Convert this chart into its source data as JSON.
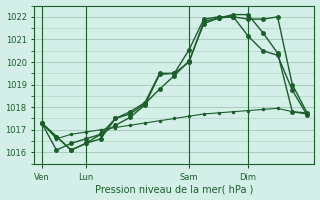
{
  "background_color": "#d4eee8",
  "plot_bg_color": "#d4eee8",
  "grid_color": "#aaccbb",
  "line_color": "#1a5e2a",
  "ylim": [
    1015.5,
    1022.5
  ],
  "yticks": [
    1016,
    1017,
    1018,
    1019,
    1020,
    1021,
    1022
  ],
  "xlabel": "Pression niveau de la mer( hPa )",
  "xtick_labels": [
    "Ven",
    "Lun",
    "Sam",
    "Dim"
  ],
  "xtick_positions": [
    0,
    3,
    10,
    14
  ],
  "series1": [
    1017.3,
    1016.7,
    1016.1,
    1016.4,
    1016.6,
    1017.5,
    1017.8,
    1018.2,
    1019.5,
    1019.5,
    1020.0,
    1021.8,
    1021.95,
    1022.1,
    1022.1,
    1021.3,
    1020.4,
    1017.8,
    1017.7
  ],
  "series2": [
    1017.3,
    1016.7,
    1016.1,
    1016.4,
    1016.8,
    1017.5,
    1017.7,
    1018.15,
    1018.8,
    1019.4,
    1020.05,
    1021.7,
    1021.95,
    1022.0,
    1021.15,
    1020.5,
    1020.3,
    1018.75,
    1017.65
  ],
  "series3": [
    1017.3,
    1016.1,
    1016.4,
    1016.6,
    1016.8,
    1017.2,
    1017.55,
    1018.1,
    1019.45,
    1019.5,
    1020.55,
    1021.9,
    1022.0,
    1022.0,
    1021.9,
    1021.9,
    1022.0,
    1019.0,
    1017.75
  ],
  "series4": [
    1017.3,
    1016.6,
    1016.8,
    1016.9,
    1017.0,
    1017.1,
    1017.2,
    1017.3,
    1017.4,
    1017.5,
    1017.6,
    1017.7,
    1017.75,
    1017.8,
    1017.85,
    1017.9,
    1017.95,
    1017.8,
    1017.75
  ]
}
